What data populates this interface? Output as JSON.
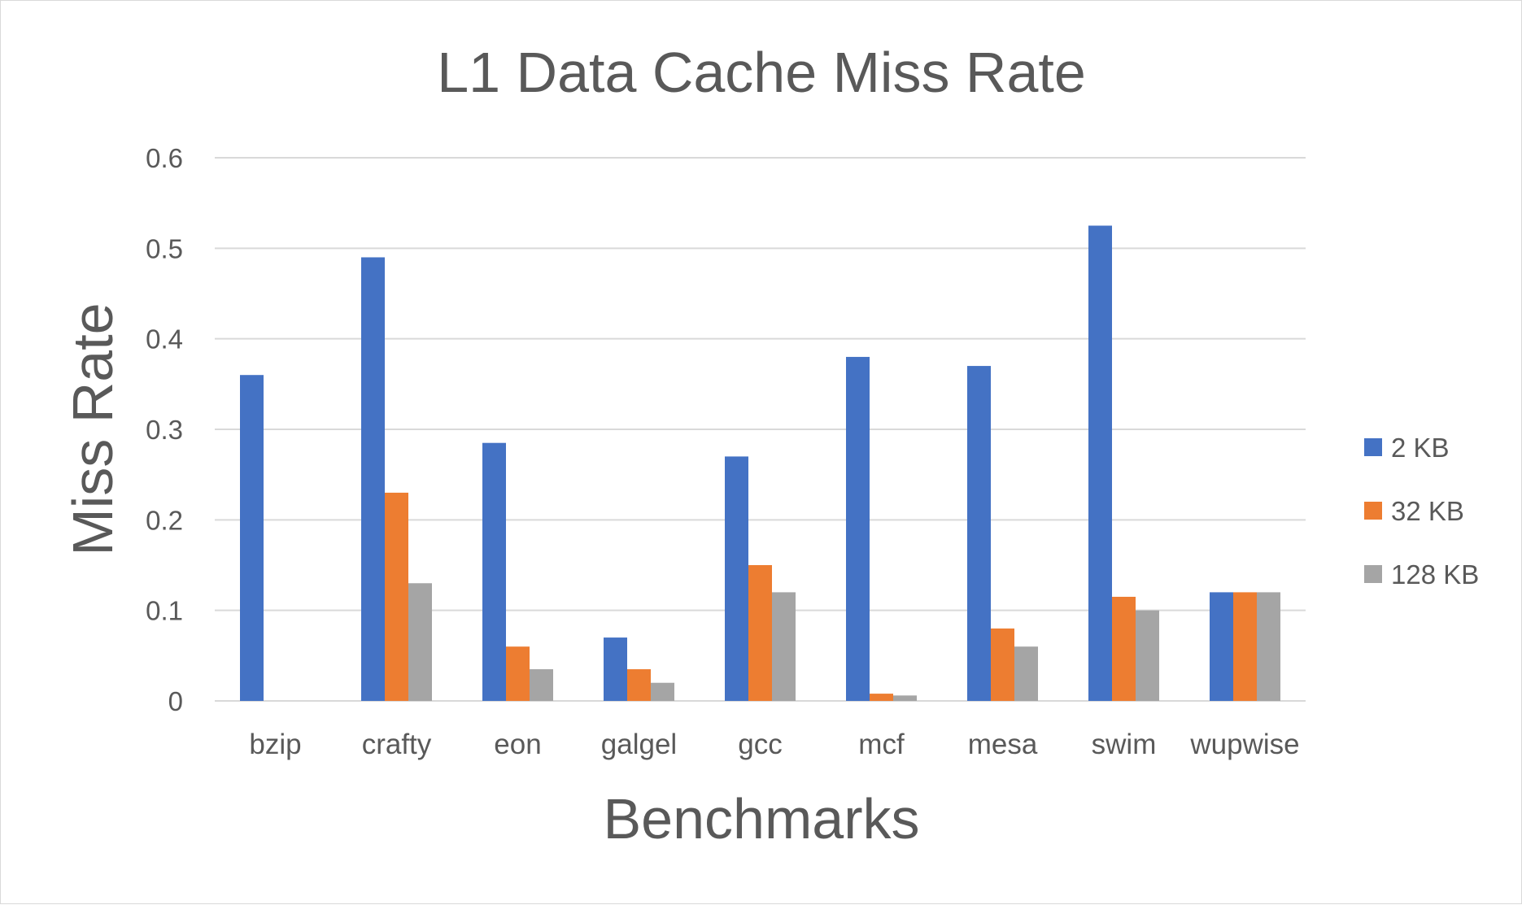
{
  "chart_data": {
    "type": "bar",
    "title": "L1 Data Cache Miss Rate",
    "xlabel": "Benchmarks",
    "ylabel": "Miss Rate",
    "categories": [
      "bzip",
      "crafty",
      "eon",
      "galgel",
      "gcc",
      "mcf",
      "mesa",
      "swim",
      "wupwise"
    ],
    "series": [
      {
        "name": "2 KB",
        "color": "#4472c4",
        "values": [
          0.36,
          0.49,
          0.285,
          0.07,
          0.27,
          0.38,
          0.37,
          0.525,
          0.12
        ]
      },
      {
        "name": "32 KB",
        "color": "#ed7d31",
        "values": [
          0,
          0.23,
          0.06,
          0.035,
          0.15,
          0.008,
          0.08,
          0.115,
          0.12
        ]
      },
      {
        "name": "128 KB",
        "color": "#a5a5a5",
        "values": [
          0,
          0.13,
          0.035,
          0.02,
          0.12,
          0.006,
          0.06,
          0.1,
          0.12
        ]
      }
    ],
    "ylim": [
      0,
      0.6
    ],
    "yticks": [
      "0",
      "0.1",
      "0.2",
      "0.3",
      "0.4",
      "0.5",
      "0.6"
    ],
    "grid": true,
    "legend_position": "right"
  }
}
